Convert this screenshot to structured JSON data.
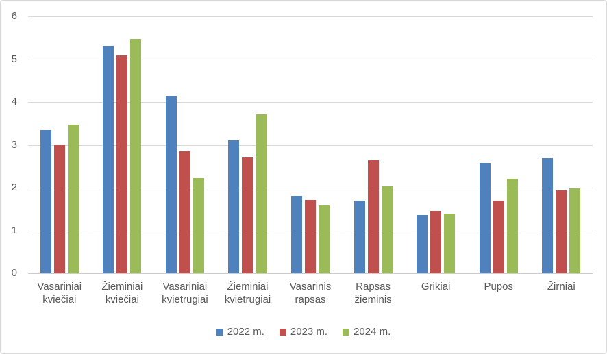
{
  "chart_data": {
    "type": "bar",
    "title": "",
    "xlabel": "",
    "ylabel": "",
    "categories": [
      "Vasariniai kviečiai",
      "Žieminiai kviečiai",
      "Vasariniai kvietrugiai",
      "Žieminiai kvietrugiai",
      "Vasarinis rapsas",
      "Rapsas žieminis",
      "Grikiai",
      "Pupos",
      "Žirniai"
    ],
    "series": [
      {
        "name": "2022 m.",
        "color": "#4F81BD",
        "values": [
          3.34,
          5.32,
          4.15,
          3.11,
          1.81,
          1.69,
          1.36,
          2.57,
          2.69
        ]
      },
      {
        "name": "2023 m.",
        "color": "#C0504D",
        "values": [
          3.0,
          5.09,
          2.85,
          2.7,
          1.72,
          2.64,
          1.46,
          1.7,
          1.93
        ]
      },
      {
        "name": "2024 m.",
        "color": "#9BBB59",
        "values": [
          3.48,
          5.48,
          2.23,
          3.71,
          1.59,
          2.03,
          1.39,
          2.21,
          1.98
        ]
      }
    ],
    "ylim": [
      0,
      6
    ],
    "yticks": [
      0,
      1,
      2,
      3,
      4,
      5,
      6
    ],
    "grid": true,
    "legend_position": "bottom"
  },
  "colors": {
    "gridline": "#D9D9D9",
    "axis_line": "#CCCCCC",
    "text": "#595959",
    "border": "#D9D9D9",
    "background": "#FFFFFF"
  }
}
